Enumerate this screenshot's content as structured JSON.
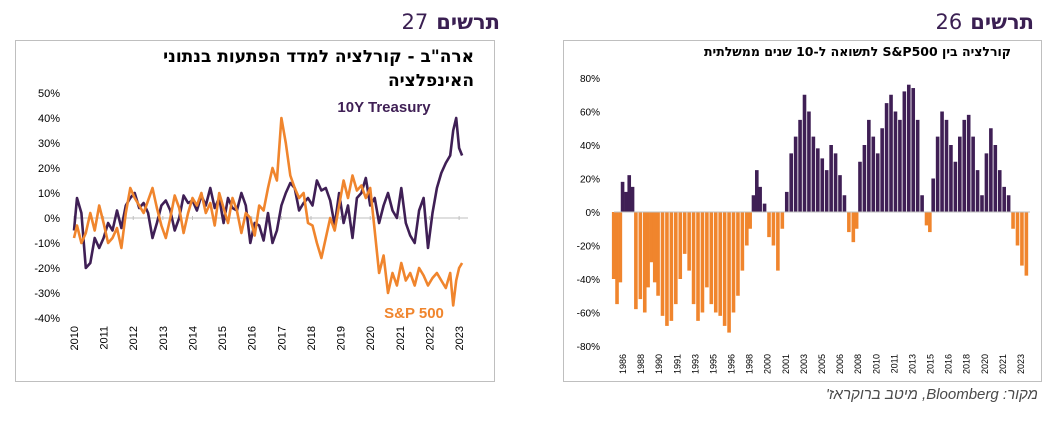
{
  "headings": {
    "left": {
      "word": "תרשים",
      "number": "27"
    },
    "right": {
      "word": "תרשים",
      "number": "26"
    }
  },
  "source": "מקור: Bloomberg, מיטב ברוקראז'",
  "colors": {
    "purple": "#3f1f55",
    "orange": "#f0852d",
    "heading": "#3a1f52"
  },
  "chart_data": [
    {
      "type": "line",
      "title_line1": "ארה\"ב - קורלציה למדד הפתעות בנתוני",
      "title_line2": "האינפלציה",
      "y_ticks": [
        "50%",
        "40%",
        "30%",
        "20%",
        "10%",
        "0%",
        "-10%",
        "-20%",
        "-30%",
        "-40%"
      ],
      "ylim": [
        -40,
        50
      ],
      "x_ticks": [
        "2010",
        "2011",
        "2012",
        "2013",
        "2014",
        "2015",
        "2016",
        "2017",
        "2018",
        "2019",
        "2020",
        "2021",
        "2022",
        "2023"
      ],
      "xlim": [
        2010,
        2023.3
      ],
      "series": [
        {
          "name": "10Y Treasury",
          "color": "#3f1f55",
          "x": [
            2010.0,
            2010.1,
            2010.25,
            2010.4,
            2010.55,
            2010.7,
            2010.85,
            2011.0,
            2011.15,
            2011.3,
            2011.45,
            2011.6,
            2011.75,
            2011.9,
            2012.05,
            2012.2,
            2012.35,
            2012.5,
            2012.65,
            2012.8,
            2012.95,
            2013.1,
            2013.25,
            2013.4,
            2013.55,
            2013.7,
            2013.85,
            2014.0,
            2014.15,
            2014.3,
            2014.45,
            2014.6,
            2014.75,
            2014.9,
            2015.05,
            2015.2,
            2015.35,
            2015.5,
            2015.65,
            2015.8,
            2015.95,
            2016.1,
            2016.25,
            2016.4,
            2016.55,
            2016.7,
            2016.85,
            2017.0,
            2017.15,
            2017.3,
            2017.45,
            2017.6,
            2017.75,
            2017.9,
            2018.05,
            2018.2,
            2018.35,
            2018.5,
            2018.65,
            2018.8,
            2018.95,
            2019.1,
            2019.25,
            2019.4,
            2019.55,
            2019.7,
            2019.85,
            2020.0,
            2020.15,
            2020.3,
            2020.45,
            2020.6,
            2020.75,
            2020.9,
            2021.05,
            2021.2,
            2021.35,
            2021.5,
            2021.65,
            2021.8,
            2021.95,
            2022.1,
            2022.25,
            2022.4,
            2022.55,
            2022.7,
            2022.8,
            2022.9,
            2023.0,
            2023.1
          ],
          "y": [
            -5,
            8,
            2,
            -20,
            -18,
            -8,
            -12,
            -8,
            -2,
            -5,
            3,
            -4,
            5,
            8,
            10,
            4,
            6,
            2,
            -8,
            -2,
            5,
            7,
            3,
            -5,
            0,
            9,
            6,
            7,
            3,
            9,
            5,
            12,
            4,
            8,
            -2,
            8,
            4,
            3,
            10,
            5,
            -10,
            -2,
            -3,
            -9,
            2,
            -10,
            -5,
            5,
            10,
            14,
            12,
            3,
            6,
            8,
            5,
            15,
            11,
            12,
            7,
            -3,
            10,
            -2,
            5,
            -8,
            8,
            10,
            16,
            5,
            8,
            -2,
            5,
            10,
            3,
            0,
            12,
            -2,
            -7,
            -10,
            3,
            8,
            -12,
            2,
            12,
            18,
            22,
            25,
            35,
            40,
            28,
            25
          ]
        },
        {
          "name": "S&P 500",
          "color": "#f0852d",
          "x": [
            2010.0,
            2010.1,
            2010.25,
            2010.4,
            2010.55,
            2010.7,
            2010.85,
            2011.0,
            2011.15,
            2011.3,
            2011.45,
            2011.6,
            2011.75,
            2011.9,
            2012.05,
            2012.2,
            2012.35,
            2012.5,
            2012.65,
            2012.8,
            2012.95,
            2013.1,
            2013.25,
            2013.4,
            2013.55,
            2013.7,
            2013.85,
            2014.0,
            2014.15,
            2014.3,
            2014.45,
            2014.6,
            2014.75,
            2014.9,
            2015.05,
            2015.2,
            2015.35,
            2015.5,
            2015.65,
            2015.8,
            2015.95,
            2016.1,
            2016.25,
            2016.4,
            2016.55,
            2016.7,
            2016.85,
            2017.0,
            2017.15,
            2017.3,
            2017.45,
            2017.6,
            2017.75,
            2017.9,
            2018.05,
            2018.2,
            2018.35,
            2018.5,
            2018.65,
            2018.8,
            2018.95,
            2019.1,
            2019.25,
            2019.4,
            2019.55,
            2019.7,
            2019.85,
            2020.0,
            2020.15,
            2020.3,
            2020.45,
            2020.6,
            2020.75,
            2020.9,
            2021.05,
            2021.2,
            2021.35,
            2021.5,
            2021.65,
            2021.8,
            2021.95,
            2022.1,
            2022.25,
            2022.4,
            2022.55,
            2022.7,
            2022.8,
            2022.9,
            2023.0,
            2023.1
          ],
          "y": [
            -8,
            -3,
            -10,
            -6,
            2,
            -5,
            5,
            -2,
            -10,
            -8,
            -4,
            -12,
            2,
            12,
            8,
            5,
            2,
            7,
            12,
            4,
            -3,
            -8,
            0,
            9,
            4,
            -6,
            2,
            8,
            5,
            10,
            2,
            6,
            -3,
            10,
            4,
            -2,
            8,
            3,
            -6,
            2,
            0,
            -7,
            5,
            3,
            12,
            20,
            15,
            40,
            30,
            17,
            12,
            8,
            10,
            -2,
            -3,
            -10,
            -16,
            -8,
            0,
            -5,
            5,
            15,
            8,
            17,
            11,
            13,
            8,
            12,
            -5,
            -22,
            -15,
            -30,
            -22,
            -27,
            -18,
            -25,
            -22,
            -27,
            -20,
            -23,
            -27,
            -24,
            -22,
            -25,
            -28,
            -22,
            -35,
            -25,
            -20,
            -18
          ]
        }
      ]
    },
    {
      "type": "bar",
      "title": "קורלציה בין S&P500 לתשואה ל-10 שנים ממשלתית",
      "y_ticks": [
        "80%",
        "60%",
        "40%",
        "20%",
        "0%",
        "-20%",
        "-40%",
        "-60%",
        "-80%"
      ],
      "ylim": [
        -80,
        80
      ],
      "x_ticks": [
        "1986",
        "1988",
        "1990",
        "1991",
        "1993",
        "1995",
        "1996",
        "1998",
        "2000",
        "2001",
        "2003",
        "2005",
        "2006",
        "2008",
        "2010",
        "2011",
        "2013",
        "2015",
        "2016",
        "2018",
        "2020",
        "2021",
        "2023"
      ],
      "xlim": [
        1986,
        2023.5
      ],
      "points": [
        [
          1986.0,
          -40
        ],
        [
          1986.3,
          -55
        ],
        [
          1986.6,
          -42
        ],
        [
          1986.8,
          18
        ],
        [
          1987.1,
          12
        ],
        [
          1987.4,
          22
        ],
        [
          1987.7,
          15
        ],
        [
          1988.0,
          -58
        ],
        [
          1988.4,
          -52
        ],
        [
          1988.8,
          -60
        ],
        [
          1989.1,
          -45
        ],
        [
          1989.4,
          -30
        ],
        [
          1989.7,
          -42
        ],
        [
          1990.0,
          -50
        ],
        [
          1990.4,
          -62
        ],
        [
          1990.8,
          -68
        ],
        [
          1991.2,
          -65
        ],
        [
          1991.6,
          -55
        ],
        [
          1992.0,
          -40
        ],
        [
          1992.4,
          -25
        ],
        [
          1992.8,
          -35
        ],
        [
          1993.2,
          -55
        ],
        [
          1993.6,
          -65
        ],
        [
          1994.0,
          -60
        ],
        [
          1994.4,
          -45
        ],
        [
          1994.8,
          -55
        ],
        [
          1995.2,
          -60
        ],
        [
          1995.6,
          -62
        ],
        [
          1996.0,
          -68
        ],
        [
          1996.4,
          -72
        ],
        [
          1996.8,
          -60
        ],
        [
          1997.2,
          -50
        ],
        [
          1997.6,
          -35
        ],
        [
          1998.0,
          -20
        ],
        [
          1998.3,
          -10
        ],
        [
          1998.6,
          10
        ],
        [
          1998.9,
          25
        ],
        [
          1999.2,
          15
        ],
        [
          1999.6,
          5
        ],
        [
          2000.0,
          -15
        ],
        [
          2000.4,
          -20
        ],
        [
          2000.8,
          -35
        ],
        [
          2001.2,
          -10
        ],
        [
          2001.6,
          12
        ],
        [
          2002.0,
          35
        ],
        [
          2002.4,
          45
        ],
        [
          2002.8,
          55
        ],
        [
          2003.2,
          70
        ],
        [
          2003.6,
          60
        ],
        [
          2004.0,
          45
        ],
        [
          2004.4,
          38
        ],
        [
          2004.8,
          32
        ],
        [
          2005.2,
          25
        ],
        [
          2005.6,
          40
        ],
        [
          2006.0,
          35
        ],
        [
          2006.4,
          22
        ],
        [
          2006.8,
          10
        ],
        [
          2007.2,
          -12
        ],
        [
          2007.6,
          -18
        ],
        [
          2007.9,
          -10
        ],
        [
          2008.2,
          30
        ],
        [
          2008.6,
          40
        ],
        [
          2009.0,
          55
        ],
        [
          2009.4,
          45
        ],
        [
          2009.8,
          35
        ],
        [
          2010.2,
          50
        ],
        [
          2010.6,
          65
        ],
        [
          2011.0,
          70
        ],
        [
          2011.4,
          60
        ],
        [
          2011.8,
          55
        ],
        [
          2012.2,
          72
        ],
        [
          2012.6,
          76
        ],
        [
          2013.0,
          74
        ],
        [
          2013.4,
          55
        ],
        [
          2013.8,
          10
        ],
        [
          2014.2,
          -8
        ],
        [
          2014.5,
          -12
        ],
        [
          2014.8,
          20
        ],
        [
          2015.2,
          45
        ],
        [
          2015.6,
          60
        ],
        [
          2016.0,
          55
        ],
        [
          2016.4,
          40
        ],
        [
          2016.8,
          30
        ],
        [
          2017.2,
          45
        ],
        [
          2017.6,
          55
        ],
        [
          2018.0,
          58
        ],
        [
          2018.4,
          45
        ],
        [
          2018.8,
          25
        ],
        [
          2019.2,
          10
        ],
        [
          2019.6,
          35
        ],
        [
          2020.0,
          50
        ],
        [
          2020.4,
          40
        ],
        [
          2020.8,
          25
        ],
        [
          2021.2,
          15
        ],
        [
          2021.6,
          10
        ],
        [
          2022.0,
          -10
        ],
        [
          2022.4,
          -20
        ],
        [
          2022.8,
          -32
        ],
        [
          2023.2,
          -38
        ]
      ]
    }
  ]
}
